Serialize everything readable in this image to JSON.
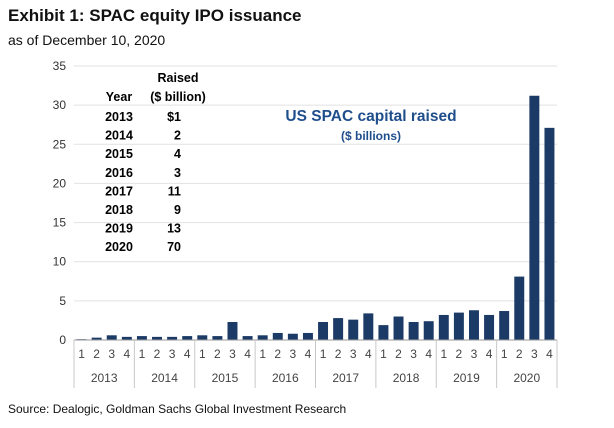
{
  "title": "Exhibit 1: SPAC equity IPO issuance",
  "subtitle": "as of December 10, 2020",
  "source": "Source: Dealogic, Goldman Sachs Global Investment Research",
  "colors": {
    "bar": "#1b3a66",
    "annotation": "#1f4e8c",
    "axis": "#999999"
  },
  "chart_data": {
    "type": "bar",
    "title": "US SPAC capital raised",
    "subtitle": "($ billions)",
    "ylim": [
      0,
      35
    ],
    "yticks": [
      0,
      5,
      10,
      15,
      20,
      25,
      30,
      35
    ],
    "years": [
      "2013",
      "2014",
      "2015",
      "2016",
      "2017",
      "2018",
      "2019",
      "2020"
    ],
    "quarter_labels": [
      "1",
      "2",
      "3",
      "4"
    ],
    "categories": [
      "2013 Q1",
      "2013 Q2",
      "2013 Q3",
      "2013 Q4",
      "2014 Q1",
      "2014 Q2",
      "2014 Q3",
      "2014 Q4",
      "2015 Q1",
      "2015 Q2",
      "2015 Q3",
      "2015 Q4",
      "2016 Q1",
      "2016 Q2",
      "2016 Q3",
      "2016 Q4",
      "2017 Q1",
      "2017 Q2",
      "2017 Q3",
      "2017 Q4",
      "2018 Q1",
      "2018 Q2",
      "2018 Q3",
      "2018 Q4",
      "2019 Q1",
      "2019 Q2",
      "2019 Q3",
      "2019 Q4",
      "2020 Q1",
      "2020 Q2",
      "2020 Q3",
      "2020 Q4"
    ],
    "values": [
      0.1,
      0.3,
      0.6,
      0.4,
      0.5,
      0.4,
      0.4,
      0.5,
      0.6,
      0.5,
      2.3,
      0.5,
      0.6,
      0.9,
      0.8,
      0.9,
      2.3,
      2.8,
      2.6,
      3.4,
      1.9,
      3.0,
      2.3,
      2.4,
      3.2,
      3.5,
      3.8,
      3.2,
      3.7,
      8.1,
      31.2,
      27.1
    ],
    "table": {
      "header_year": "Year",
      "header_raised_line1": "Raised",
      "header_raised_line2": "($ billion)",
      "rows": [
        {
          "year": "2013",
          "raised": "$1"
        },
        {
          "year": "2014",
          "raised": "2"
        },
        {
          "year": "2015",
          "raised": "4"
        },
        {
          "year": "2016",
          "raised": "3"
        },
        {
          "year": "2017",
          "raised": "11"
        },
        {
          "year": "2018",
          "raised": "9"
        },
        {
          "year": "2019",
          "raised": "13"
        },
        {
          "year": "2020",
          "raised": "70"
        }
      ]
    }
  }
}
